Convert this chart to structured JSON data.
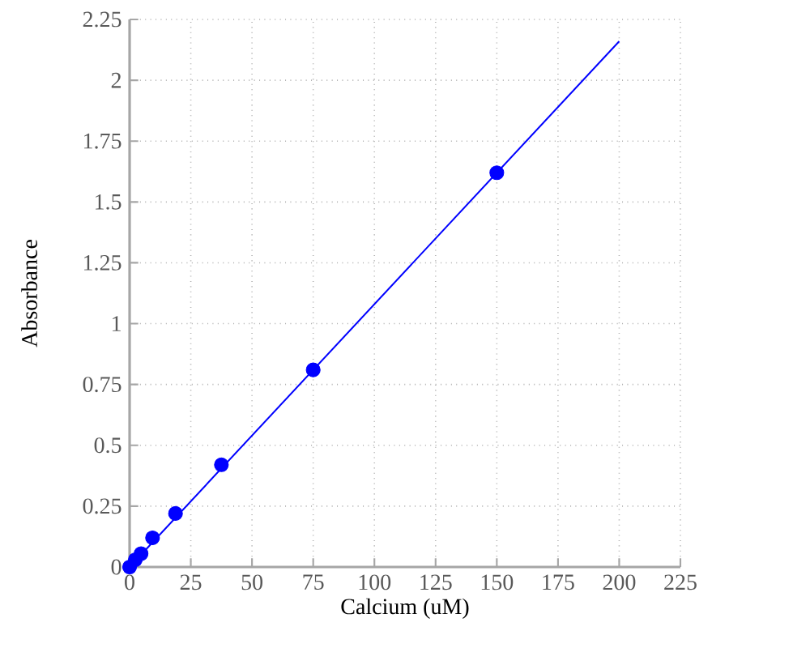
{
  "chart_data": {
    "type": "scatter",
    "xlabel": "Calcium (uM)",
    "ylabel": "Absorbance",
    "xlim": [
      0,
      225
    ],
    "ylim": [
      0,
      2.25
    ],
    "xticks": [
      0,
      25,
      50,
      75,
      100,
      125,
      150,
      175,
      200,
      225
    ],
    "yticks": [
      0,
      0.25,
      0.5,
      0.75,
      1,
      1.25,
      1.5,
      1.75,
      2,
      2.25
    ],
    "grid": true,
    "marker": "circle",
    "series": [
      {
        "color": "#0000ff",
        "x": [
          0,
          2.34,
          4.69,
          9.375,
          18.75,
          37.5,
          75,
          150
        ],
        "values": [
          0,
          0.03,
          0.055,
          0.12,
          0.22,
          0.42,
          0.81,
          1.62
        ]
      },
      {
        "type": "line",
        "color": "#0000ff",
        "line_style": "solid",
        "marker": "none",
        "x": [
          0,
          200
        ],
        "values": [
          0,
          2.16
        ]
      }
    ]
  }
}
